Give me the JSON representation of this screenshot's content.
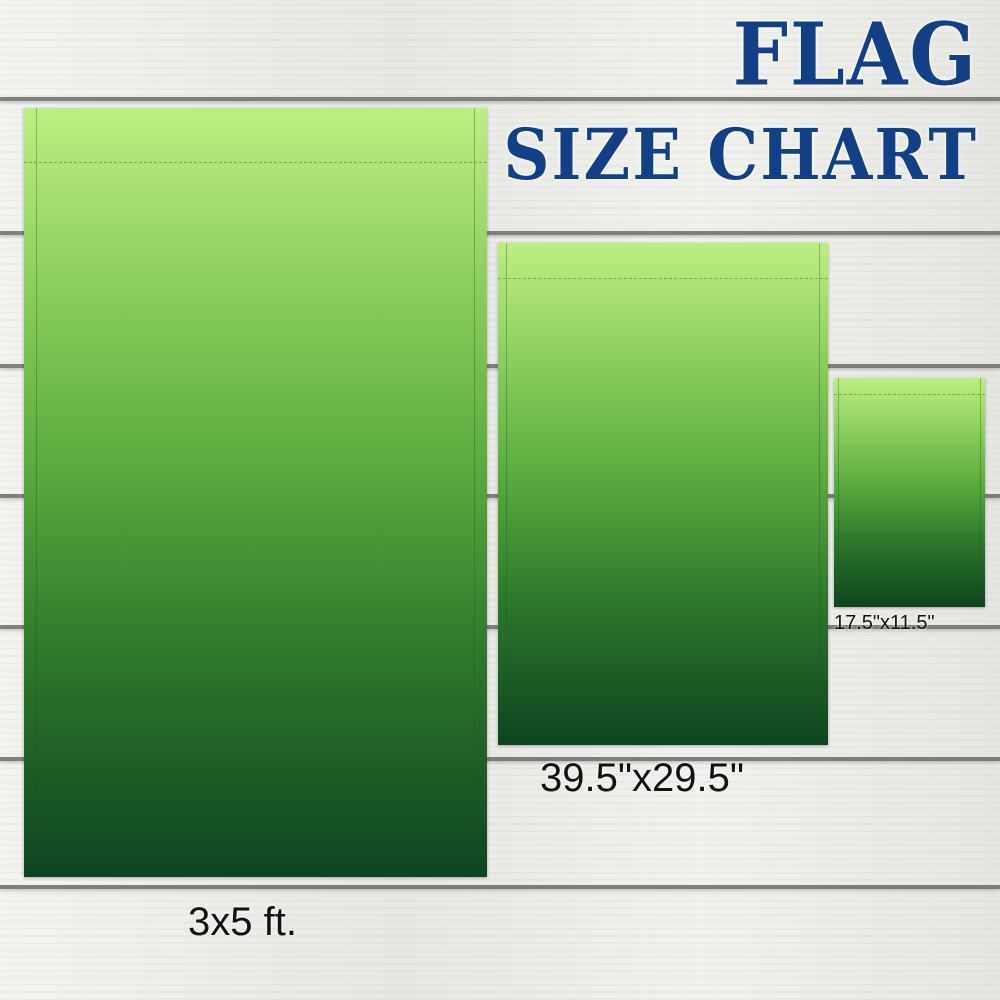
{
  "title": {
    "line1": "FLAG",
    "line2": "SIZE CHART",
    "color": "#123f85"
  },
  "flag_colors": {
    "top": "#bdef80",
    "bottom": "#0e4420"
  },
  "sizes": [
    {
      "name": "large",
      "label": "3x5 ft."
    },
    {
      "name": "medium",
      "label": "39.5\"x29.5\""
    },
    {
      "name": "small",
      "label": "17.5\"x11.5\""
    }
  ]
}
